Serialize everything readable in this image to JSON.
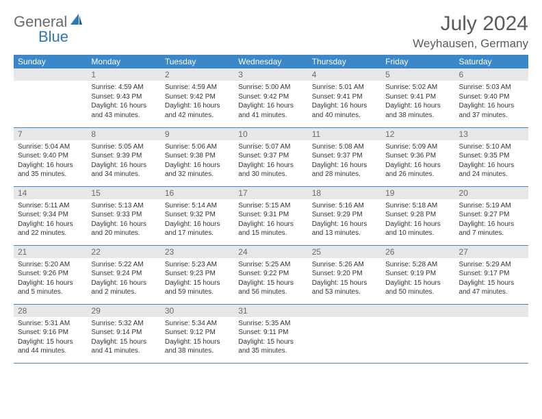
{
  "logo": {
    "general": "General",
    "blue": "Blue"
  },
  "title": "July 2024",
  "location": "Weyhausen, Germany",
  "colors": {
    "header_bg": "#3b87c8",
    "header_fg": "#ffffff",
    "daynum_bg": "#e7e7e7",
    "daynum_fg": "#6a6a6a",
    "row_border": "#3b87c8",
    "text": "#333333",
    "logo_gray": "#6a6a6a",
    "logo_blue": "#2c79b5"
  },
  "weekdays": [
    "Sunday",
    "Monday",
    "Tuesday",
    "Wednesday",
    "Thursday",
    "Friday",
    "Saturday"
  ],
  "weeks": [
    [
      null,
      {
        "n": "1",
        "sr": "4:59 AM",
        "ss": "9:43 PM",
        "dl": "16 hours and 43 minutes."
      },
      {
        "n": "2",
        "sr": "4:59 AM",
        "ss": "9:42 PM",
        "dl": "16 hours and 42 minutes."
      },
      {
        "n": "3",
        "sr": "5:00 AM",
        "ss": "9:42 PM",
        "dl": "16 hours and 41 minutes."
      },
      {
        "n": "4",
        "sr": "5:01 AM",
        "ss": "9:41 PM",
        "dl": "16 hours and 40 minutes."
      },
      {
        "n": "5",
        "sr": "5:02 AM",
        "ss": "9:41 PM",
        "dl": "16 hours and 38 minutes."
      },
      {
        "n": "6",
        "sr": "5:03 AM",
        "ss": "9:40 PM",
        "dl": "16 hours and 37 minutes."
      }
    ],
    [
      {
        "n": "7",
        "sr": "5:04 AM",
        "ss": "9:40 PM",
        "dl": "16 hours and 35 minutes."
      },
      {
        "n": "8",
        "sr": "5:05 AM",
        "ss": "9:39 PM",
        "dl": "16 hours and 34 minutes."
      },
      {
        "n": "9",
        "sr": "5:06 AM",
        "ss": "9:38 PM",
        "dl": "16 hours and 32 minutes."
      },
      {
        "n": "10",
        "sr": "5:07 AM",
        "ss": "9:37 PM",
        "dl": "16 hours and 30 minutes."
      },
      {
        "n": "11",
        "sr": "5:08 AM",
        "ss": "9:37 PM",
        "dl": "16 hours and 28 minutes."
      },
      {
        "n": "12",
        "sr": "5:09 AM",
        "ss": "9:36 PM",
        "dl": "16 hours and 26 minutes."
      },
      {
        "n": "13",
        "sr": "5:10 AM",
        "ss": "9:35 PM",
        "dl": "16 hours and 24 minutes."
      }
    ],
    [
      {
        "n": "14",
        "sr": "5:11 AM",
        "ss": "9:34 PM",
        "dl": "16 hours and 22 minutes."
      },
      {
        "n": "15",
        "sr": "5:13 AM",
        "ss": "9:33 PM",
        "dl": "16 hours and 20 minutes."
      },
      {
        "n": "16",
        "sr": "5:14 AM",
        "ss": "9:32 PM",
        "dl": "16 hours and 17 minutes."
      },
      {
        "n": "17",
        "sr": "5:15 AM",
        "ss": "9:31 PM",
        "dl": "16 hours and 15 minutes."
      },
      {
        "n": "18",
        "sr": "5:16 AM",
        "ss": "9:29 PM",
        "dl": "16 hours and 13 minutes."
      },
      {
        "n": "19",
        "sr": "5:18 AM",
        "ss": "9:28 PM",
        "dl": "16 hours and 10 minutes."
      },
      {
        "n": "20",
        "sr": "5:19 AM",
        "ss": "9:27 PM",
        "dl": "16 hours and 7 minutes."
      }
    ],
    [
      {
        "n": "21",
        "sr": "5:20 AM",
        "ss": "9:26 PM",
        "dl": "16 hours and 5 minutes."
      },
      {
        "n": "22",
        "sr": "5:22 AM",
        "ss": "9:24 PM",
        "dl": "16 hours and 2 minutes."
      },
      {
        "n": "23",
        "sr": "5:23 AM",
        "ss": "9:23 PM",
        "dl": "15 hours and 59 minutes."
      },
      {
        "n": "24",
        "sr": "5:25 AM",
        "ss": "9:22 PM",
        "dl": "15 hours and 56 minutes."
      },
      {
        "n": "25",
        "sr": "5:26 AM",
        "ss": "9:20 PM",
        "dl": "15 hours and 53 minutes."
      },
      {
        "n": "26",
        "sr": "5:28 AM",
        "ss": "9:19 PM",
        "dl": "15 hours and 50 minutes."
      },
      {
        "n": "27",
        "sr": "5:29 AM",
        "ss": "9:17 PM",
        "dl": "15 hours and 47 minutes."
      }
    ],
    [
      {
        "n": "28",
        "sr": "5:31 AM",
        "ss": "9:16 PM",
        "dl": "15 hours and 44 minutes."
      },
      {
        "n": "29",
        "sr": "5:32 AM",
        "ss": "9:14 PM",
        "dl": "15 hours and 41 minutes."
      },
      {
        "n": "30",
        "sr": "5:34 AM",
        "ss": "9:12 PM",
        "dl": "15 hours and 38 minutes."
      },
      {
        "n": "31",
        "sr": "5:35 AM",
        "ss": "9:11 PM",
        "dl": "15 hours and 35 minutes."
      },
      null,
      null,
      null
    ]
  ],
  "labels": {
    "sunrise": "Sunrise:",
    "sunset": "Sunset:",
    "daylight": "Daylight:"
  }
}
